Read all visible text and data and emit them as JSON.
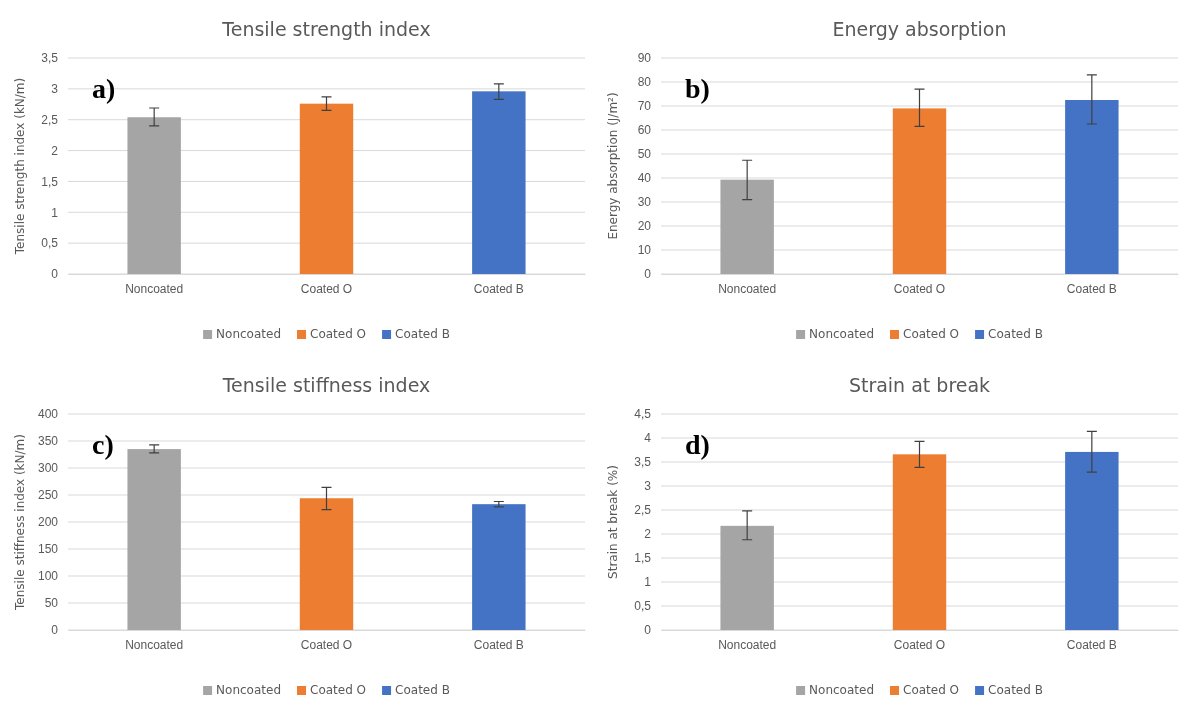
{
  "chart_data": [
    {
      "type": "bar",
      "title": "Tensile strength index",
      "ylabel": "Tensile strength index (kN/m)",
      "annotations": [
        "a)"
      ],
      "categories": [
        "Noncoated",
        "Coated O",
        "Coated B"
      ],
      "stacked": true,
      "series": [
        {
          "name": "Noncoated",
          "color": "#a5a5a5",
          "values": [
            2.54,
            null,
            null
          ],
          "errors": [
            [
              2.4,
              2.69
            ],
            null,
            null
          ]
        },
        {
          "name": "Coated O",
          "color": "#ed7d31",
          "values": [
            null,
            2.76,
            null
          ],
          "errors": [
            null,
            [
              2.65,
              2.87
            ],
            null
          ]
        },
        {
          "name": "Coated B",
          "color": "#4472c4",
          "values": [
            null,
            null,
            2.96
          ],
          "errors": [
            null,
            null,
            [
              2.83,
              3.08
            ]
          ]
        }
      ],
      "ylim": [
        0,
        3.5
      ],
      "yticks": [
        0,
        {
          "value": 0.5,
          "label": "0,5"
        },
        1,
        {
          "value": 1.5,
          "label": "1,5"
        },
        2,
        {
          "value": 2.5,
          "label": "2,5"
        },
        3,
        {
          "value": 3.5,
          "label": "3,5"
        }
      ],
      "grid": "y",
      "legend": "bottom"
    },
    {
      "type": "bar",
      "title": "Energy absorption",
      "ylabel": "Energy absorption (J/m²)",
      "annotations": [
        "b)"
      ],
      "categories": [
        "Noncoated",
        "Coated O",
        "Coated B"
      ],
      "stacked": true,
      "series": [
        {
          "name": "Noncoated",
          "color": "#a5a5a5",
          "values": [
            39.3,
            null,
            null
          ],
          "errors": [
            [
              31,
              47.4
            ],
            null,
            null
          ]
        },
        {
          "name": "Coated O",
          "color": "#ed7d31",
          "values": [
            null,
            69,
            null
          ],
          "errors": [
            null,
            [
              61.5,
              77
            ],
            null
          ]
        },
        {
          "name": "Coated B",
          "color": "#4472c4",
          "values": [
            null,
            null,
            72.5
          ],
          "errors": [
            null,
            null,
            [
              62.5,
              83
            ]
          ]
        }
      ],
      "ylim": [
        0,
        90
      ],
      "yticks": [
        0,
        10,
        20,
        30,
        40,
        50,
        60,
        70,
        80,
        90
      ],
      "grid": "y",
      "legend": "bottom"
    },
    {
      "type": "bar",
      "title": "Tensile stiffness index",
      "ylabel": "Tensile stiffness index (kN/m)",
      "annotations": [
        "c)"
      ],
      "categories": [
        "Noncoated",
        "Coated O",
        "Coated B"
      ],
      "stacked": true,
      "series": [
        {
          "name": "Noncoated",
          "color": "#a5a5a5",
          "values": [
            335,
            null,
            null
          ],
          "errors": [
            [
              328,
              343
            ],
            null,
            null
          ]
        },
        {
          "name": "Coated O",
          "color": "#ed7d31",
          "values": [
            null,
            244,
            null
          ],
          "errors": [
            null,
            [
              223,
              264
            ],
            null
          ]
        },
        {
          "name": "Coated B",
          "color": "#4472c4",
          "values": [
            null,
            null,
            233
          ],
          "errors": [
            null,
            null,
            [
              228,
              238
            ]
          ]
        }
      ],
      "ylim": [
        0,
        400
      ],
      "yticks": [
        0,
        50,
        100,
        150,
        200,
        250,
        300,
        350,
        400
      ],
      "grid": "y",
      "legend": "bottom"
    },
    {
      "type": "bar",
      "title": "Strain at break",
      "ylabel": "Strain at break (%)",
      "annotations": [
        "d)"
      ],
      "categories": [
        "Noncoated",
        "Coated O",
        "Coated B"
      ],
      "stacked": true,
      "series": [
        {
          "name": "Noncoated",
          "color": "#a5a5a5",
          "values": [
            2.17,
            null,
            null
          ],
          "errors": [
            [
              1.88,
              2.48
            ],
            null,
            null
          ]
        },
        {
          "name": "Coated O",
          "color": "#ed7d31",
          "values": [
            null,
            3.66,
            null
          ],
          "errors": [
            null,
            [
              3.39,
              3.93
            ],
            null
          ]
        },
        {
          "name": "Coated B",
          "color": "#4472c4",
          "values": [
            null,
            null,
            3.71
          ],
          "errors": [
            null,
            null,
            [
              3.29,
              4.14
            ]
          ]
        }
      ],
      "ylim": [
        0,
        4.5
      ],
      "yticks": [
        0,
        {
          "value": 0.5,
          "label": "0,5"
        },
        1,
        {
          "value": 1.5,
          "label": "1,5"
        },
        2,
        {
          "value": 2.5,
          "label": "2,5"
        },
        3,
        {
          "value": 3.5,
          "label": "3,5"
        },
        4,
        {
          "value": 4.5,
          "label": "4,5"
        }
      ],
      "grid": "y",
      "legend": "bottom"
    }
  ]
}
